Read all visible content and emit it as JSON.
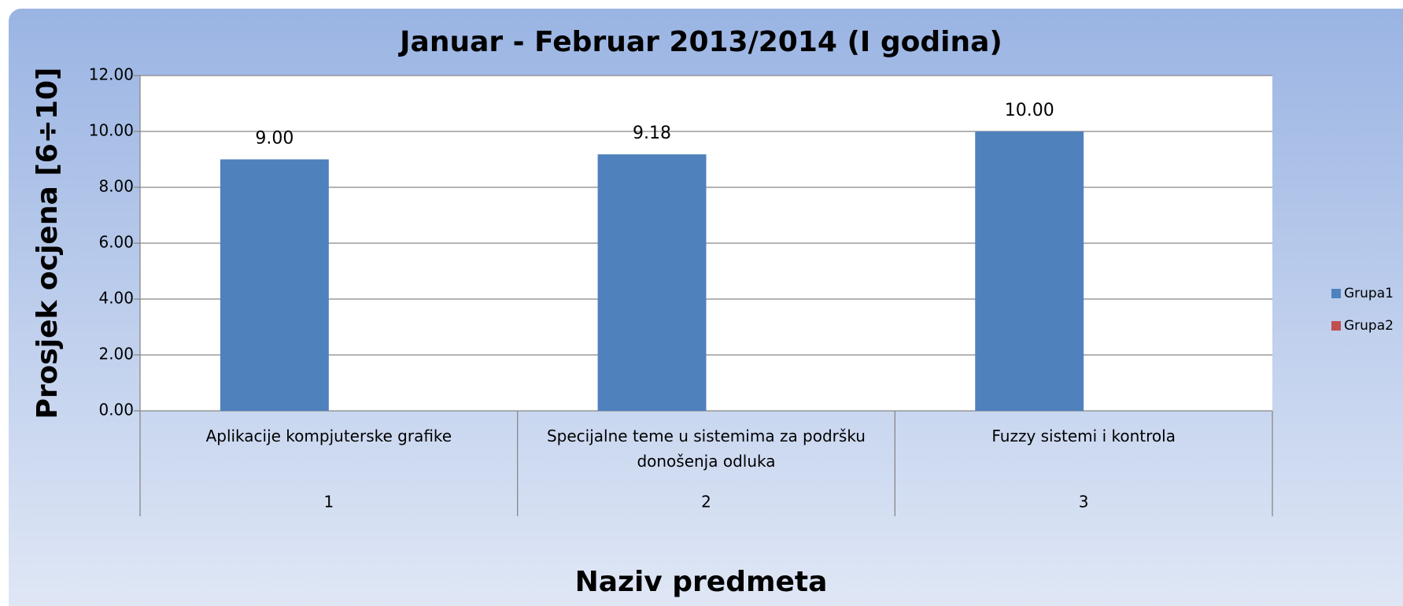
{
  "chart_data": {
    "type": "bar",
    "title": "Januar - Februar 2013/2014 (I godina)",
    "x_label": "Naziv predmeta",
    "y_label": "Prosjek ocjena [6÷10]",
    "categories": [
      "Aplikacije kompjuterske grafike",
      "Specijalne teme u sistemima za podršku donošenja odluka",
      "Fuzzy sistemi i kontrola"
    ],
    "category_numbers": [
      "1",
      "2",
      "3"
    ],
    "series": [
      {
        "name": "Grupa1",
        "color": "#4f81bd",
        "values": [
          9.0,
          9.18,
          10.0
        ],
        "value_labels": [
          "9.00",
          "9.18",
          "10.00"
        ]
      },
      {
        "name": "Grupa2",
        "color": "#c0504d",
        "values": [
          null,
          null,
          null
        ]
      }
    ],
    "ylim": [
      0,
      12
    ],
    "yticks": [
      {
        "value": 0,
        "label": "0.00"
      },
      {
        "value": 2,
        "label": "2.00"
      },
      {
        "value": 4,
        "label": "4.00"
      },
      {
        "value": 6,
        "label": "6.00"
      },
      {
        "value": 8,
        "label": "8.00"
      },
      {
        "value": 10,
        "label": "10.00"
      },
      {
        "value": 12,
        "label": "12.00"
      }
    ],
    "grid": true,
    "legend": "right"
  }
}
